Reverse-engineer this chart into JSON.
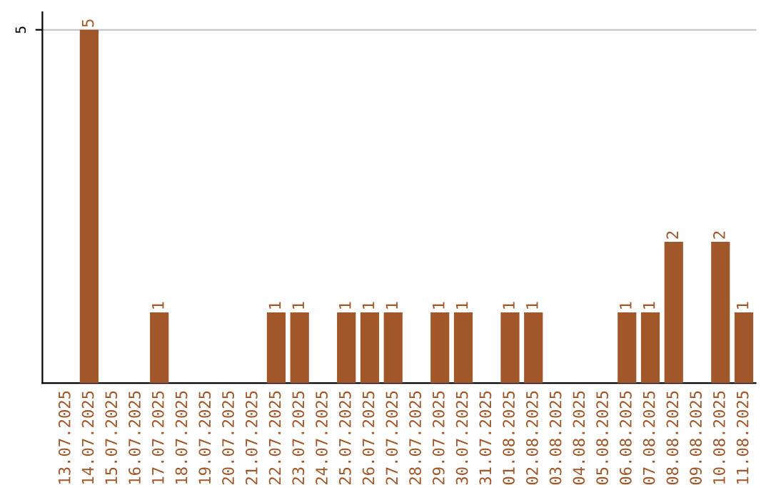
{
  "chart_data": {
    "type": "bar",
    "categories": [
      "13.07.2025",
      "14.07.2025",
      "15.07.2025",
      "16.07.2025",
      "17.07.2025",
      "18.07.2025",
      "19.07.2025",
      "20.07.2025",
      "21.07.2025",
      "22.07.2025",
      "23.07.2025",
      "24.07.2025",
      "25.07.2025",
      "26.07.2025",
      "27.07.2025",
      "28.07.2025",
      "29.07.2025",
      "30.07.2025",
      "31.07.2025",
      "01.08.2025",
      "02.08.2025",
      "03.08.2025",
      "04.08.2025",
      "05.08.2025",
      "06.08.2025",
      "07.08.2025",
      "08.08.2025",
      "09.08.2025",
      "10.08.2025",
      "11.08.2025"
    ],
    "values": [
      0,
      5,
      0,
      0,
      1,
      0,
      0,
      0,
      0,
      1,
      1,
      0,
      1,
      1,
      1,
      0,
      1,
      1,
      0,
      1,
      1,
      0,
      0,
      0,
      1,
      1,
      2,
      0,
      2,
      1
    ],
    "value_labels": [
      null,
      "5",
      null,
      null,
      "1",
      null,
      null,
      null,
      null,
      "1",
      "1",
      null,
      "1",
      "1",
      "1",
      null,
      "1",
      "1",
      null,
      "1",
      "1",
      null,
      null,
      null,
      "1",
      "1",
      "2",
      null,
      "2",
      "1"
    ],
    "color": "#a0572a",
    "ylim": [
      0,
      5.25
    ],
    "yticks": [
      5
    ],
    "grid": "y"
  }
}
